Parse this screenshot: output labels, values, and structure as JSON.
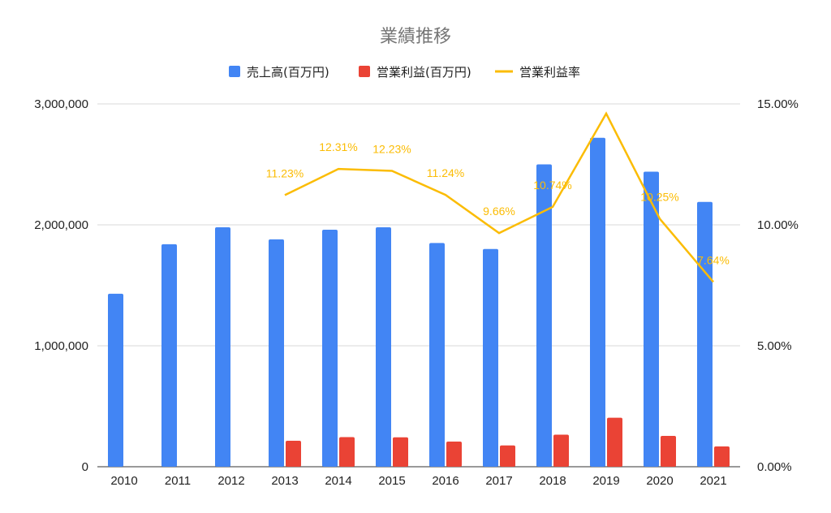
{
  "chart_data": {
    "type": "bar",
    "title": "業績推移",
    "categories": [
      "2010",
      "2011",
      "2012",
      "2013",
      "2014",
      "2015",
      "2016",
      "2017",
      "2018",
      "2019",
      "2020",
      "2021"
    ],
    "series": [
      {
        "name": "売上高(百万円)",
        "kind": "bar",
        "axis": "left",
        "color": "#4285f4",
        "values": [
          1430000,
          1840000,
          1980000,
          1880000,
          1960000,
          1980000,
          1850000,
          1800000,
          2500000,
          2720000,
          2440000,
          2190000
        ]
      },
      {
        "name": "営業利益(百万円)",
        "kind": "bar",
        "axis": "left",
        "color": "#ea4335",
        "values": [
          null,
          null,
          null,
          215000,
          245000,
          243000,
          208000,
          176000,
          265000,
          405000,
          255000,
          168000
        ]
      },
      {
        "name": "営業利益率",
        "kind": "line",
        "axis": "right",
        "color": "#fbbc04",
        "values": [
          null,
          null,
          null,
          11.23,
          12.31,
          12.23,
          11.24,
          9.66,
          10.74,
          14.6,
          10.25,
          7.64
        ],
        "labels": [
          "",
          "",
          "",
          "11.23%",
          "12.31%",
          "12.23%",
          "11.24%",
          "9.66%",
          "10.74%",
          "",
          "10.25%",
          "7.64%"
        ]
      }
    ],
    "y_left": {
      "ticks": [
        "0",
        "1,000,000",
        "2,000,000",
        "3,000,000"
      ],
      "range": [
        0,
        3000000
      ]
    },
    "y_right": {
      "ticks": [
        "0.00%",
        "5.00%",
        "10.00%",
        "15.00%"
      ],
      "range": [
        0,
        15
      ]
    },
    "grid": true,
    "legend_position": "top"
  }
}
